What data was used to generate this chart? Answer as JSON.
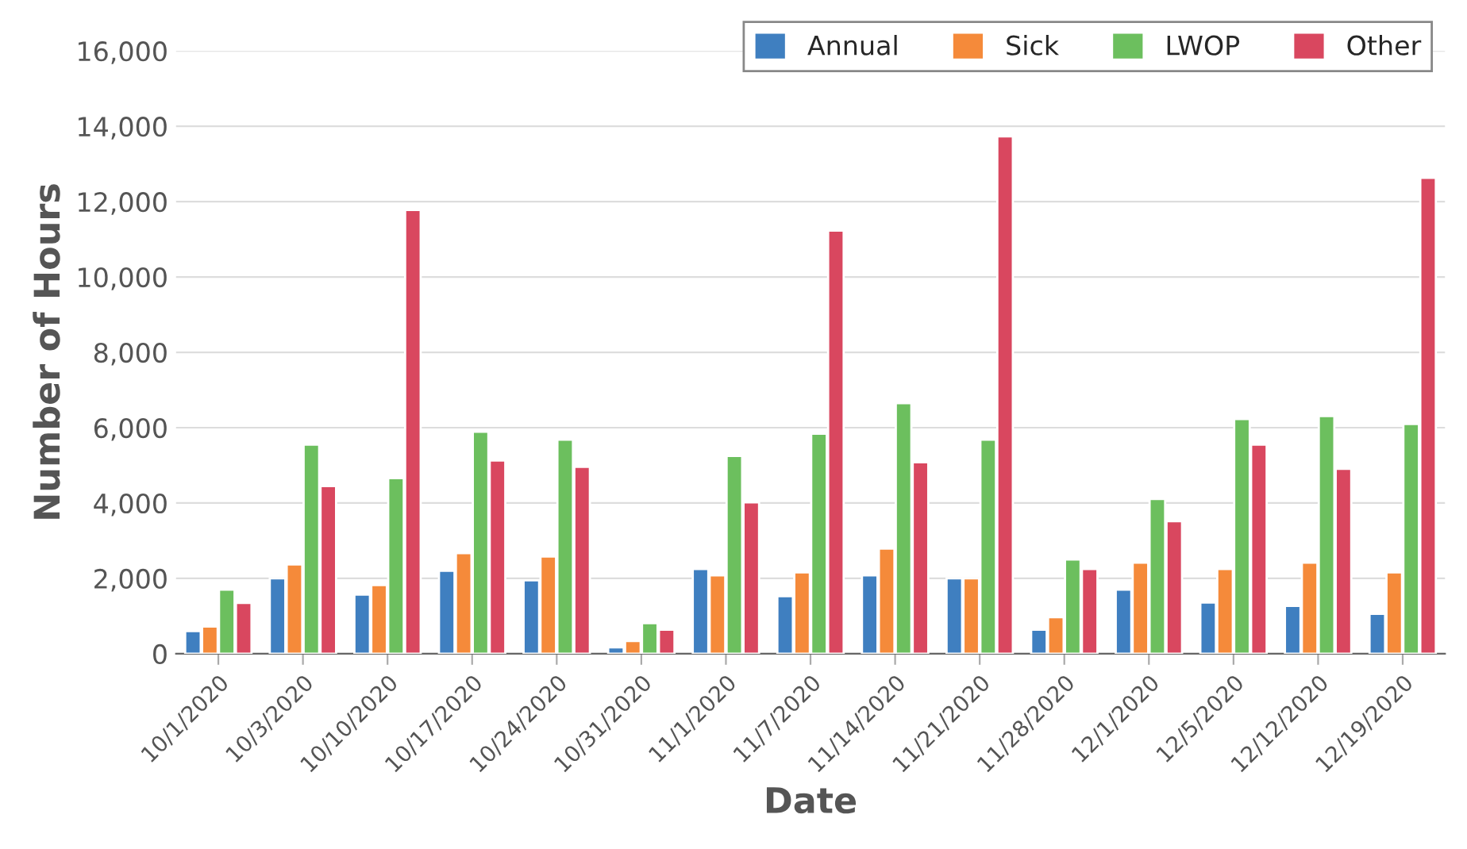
{
  "chart_data": {
    "type": "bar",
    "xlabel": "Date",
    "ylabel": "Number of Hours",
    "categories": [
      "10/1/2020",
      "10/3/2020",
      "10/10/2020",
      "10/17/2020",
      "10/24/2020",
      "10/31/2020",
      "11/1/2020",
      "11/7/2020",
      "11/14/2020",
      "11/21/2020",
      "11/28/2020",
      "12/1/2020",
      "12/5/2020",
      "12/12/2020",
      "12/19/2020"
    ],
    "series": [
      {
        "name": "Annual",
        "color": "#3f7fc0",
        "values": [
          600,
          2000,
          1570,
          2200,
          1950,
          170,
          2250,
          1530,
          2080,
          2000,
          640,
          1700,
          1360,
          1270,
          1060
        ]
      },
      {
        "name": "Sick",
        "color": "#f58a3a",
        "values": [
          720,
          2370,
          1820,
          2670,
          2580,
          340,
          2080,
          2160,
          2790,
          2000,
          970,
          2420,
          2250,
          2420,
          2160
        ]
      },
      {
        "name": "LWOP",
        "color": "#6cbf5e",
        "values": [
          1700,
          5550,
          4660,
          5890,
          5680,
          810,
          5250,
          5840,
          6650,
          5680,
          2500,
          4110,
          6230,
          6310,
          6100
        ]
      },
      {
        "name": "Other",
        "color": "#d9475f",
        "values": [
          1350,
          4450,
          11780,
          5130,
          4960,
          640,
          4020,
          11230,
          5080,
          13730,
          2250,
          3520,
          5550,
          4910,
          12630
        ]
      }
    ],
    "ylim": [
      0,
      16000
    ],
    "yticks": [
      {
        "value": 0,
        "label": "0"
      },
      {
        "value": 2000,
        "label": "2,000"
      },
      {
        "value": 4000,
        "label": "4,000"
      },
      {
        "value": 6000,
        "label": "6,000"
      },
      {
        "value": 8000,
        "label": "8,000"
      },
      {
        "value": 10000,
        "label": "10,000"
      },
      {
        "value": 12000,
        "label": "12,000"
      },
      {
        "value": 14000,
        "label": "14,000"
      },
      {
        "value": 16000,
        "label": "16,000"
      }
    ],
    "grid": "y",
    "legend": "top right"
  }
}
